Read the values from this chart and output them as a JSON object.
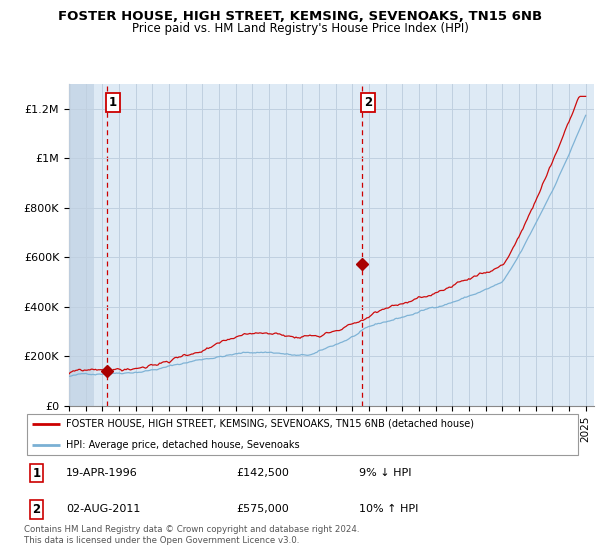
{
  "title": "FOSTER HOUSE, HIGH STREET, KEMSING, SEVENOAKS, TN15 6NB",
  "subtitle": "Price paid vs. HM Land Registry's House Price Index (HPI)",
  "ylabel_ticks": [
    "£0",
    "£200K",
    "£400K",
    "£600K",
    "£800K",
    "£1M",
    "£1.2M"
  ],
  "ytick_values": [
    0,
    200000,
    400000,
    600000,
    800000,
    1000000,
    1200000
  ],
  "ylim": [
    0,
    1300000
  ],
  "xlim_start": 1994.0,
  "xlim_end": 2025.5,
  "red_line_color": "#cc0000",
  "blue_line_color": "#7ab0d4",
  "plot_bg_color": "#deeaf5",
  "hatch_color": "#b8c8d8",
  "dashed_line_color": "#cc0000",
  "point1_x": 1996.3,
  "point1_y": 142500,
  "point2_x": 2011.58,
  "point2_y": 575000,
  "legend_red_label": "FOSTER HOUSE, HIGH STREET, KEMSING, SEVENOAKS, TN15 6NB (detached house)",
  "legend_blue_label": "HPI: Average price, detached house, Sevenoaks",
  "footnote": "Contains HM Land Registry data © Crown copyright and database right 2024.\nThis data is licensed under the Open Government Licence v3.0.",
  "grid_color": "#c0d0e0"
}
